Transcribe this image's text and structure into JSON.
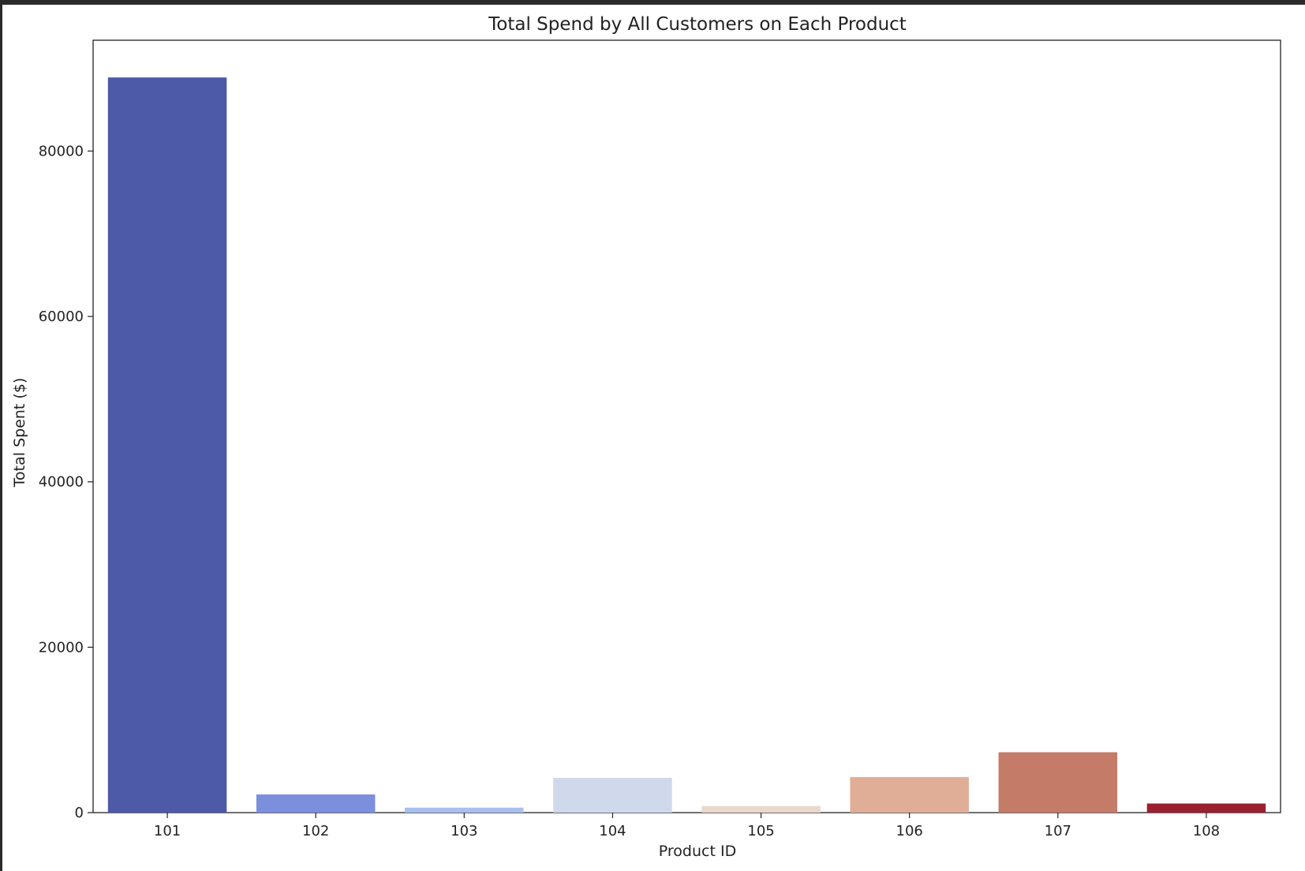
{
  "chart_data": {
    "type": "bar",
    "title": "Total Spend by All Customers on Each Product",
    "xlabel": "Product ID",
    "ylabel": "Total Spent ($)",
    "categories": [
      "101",
      "102",
      "103",
      "104",
      "105",
      "106",
      "107",
      "108"
    ],
    "values": [
      88900,
      2200,
      600,
      4200,
      800,
      4300,
      7300,
      1100
    ],
    "colors": [
      "#4c5aa8",
      "#7b8fdc",
      "#a8c0f0",
      "#d0d9eb",
      "#ead7cd",
      "#e0ae96",
      "#c47b68",
      "#9a2030"
    ],
    "ylim": [
      0,
      93400
    ],
    "yticks": [
      0,
      20000,
      40000,
      60000,
      80000
    ],
    "grid": false,
    "legend": "none"
  }
}
